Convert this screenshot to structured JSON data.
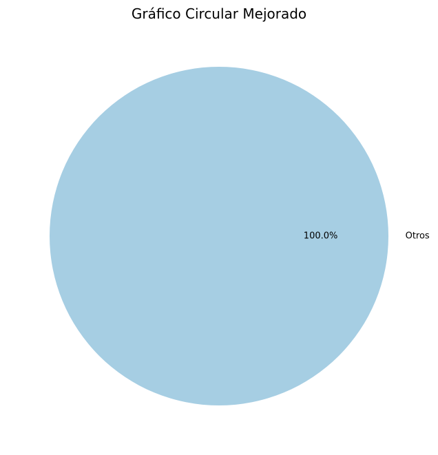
{
  "chart_data": {
    "type": "pie",
    "title": "Gráfico Circular Mejorado",
    "slices": [
      {
        "label": "Otros",
        "value": 100.0,
        "percent_label": "100.0%",
        "color": "#a6cee3"
      }
    ]
  }
}
